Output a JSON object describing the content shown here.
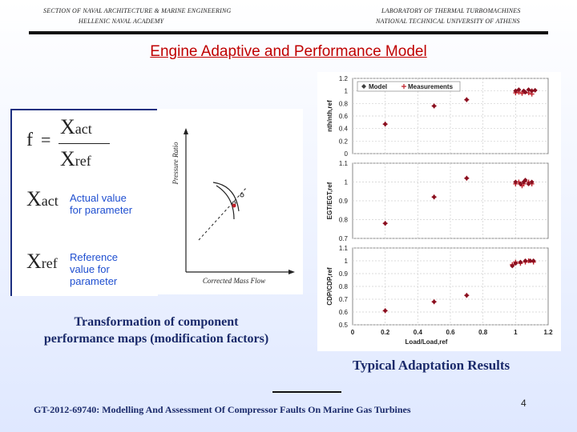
{
  "header": {
    "left_line1": "SECTION OF NAVAL ARCHITECTURE & MARINE ENGINEERING",
    "left_line2": "HELLENIC NAVAL ACADEMY",
    "right_line1": "LABORATORY OF THERMAL TURBOMACHINES",
    "right_line2": "NATIONAL TECHNICAL UNIVERSITY OF ATHENS"
  },
  "slide_title": "Engine Adaptive and Performance Model",
  "formula": {
    "f": "f",
    "equals": "=",
    "num_main": "X",
    "num_sub": "act",
    "den_main": "X",
    "den_sub": "ref",
    "xact_main": "X",
    "xact_sub": "act",
    "xact_desc_1": "Actual value",
    "xact_desc_2": "for parameter",
    "xref_main": "X",
    "xref_sub": "ref",
    "xref_desc_1": "Reference",
    "xref_desc_2": "value for",
    "xref_desc_3": "parameter"
  },
  "map": {
    "ylabel": "Pressure Ratio",
    "xlabel": "Corrected Mass Flow"
  },
  "left_caption_1": "Transformation of component",
  "left_caption_2": "performance maps (modification factors)",
  "right_caption": "Typical Adaptation Results",
  "footer": "GT-2012-69740: Modelling And Assessment Of Compressor Faults On Marine Gas Turbines",
  "page_number": "4",
  "colors": {
    "title": "#c00000",
    "accent_blue": "#1f4fd0",
    "caption": "#1a2a6a",
    "marker": "#c0202a",
    "model": "#404040"
  },
  "chart_data": [
    {
      "type": "scatter",
      "ylabel": "nth/nth,ref",
      "xlabel": "",
      "xlim": [
        0,
        1.2
      ],
      "ylim": [
        0,
        1.2
      ],
      "yticks": [
        "1.2",
        "1",
        "0.8",
        "0.6",
        "0.4",
        "0.2",
        "0"
      ],
      "legend": [
        "Model",
        "Measurements"
      ],
      "legend_position": "top-left",
      "grid": true,
      "model": [
        [
          0.2,
          0.47
        ],
        [
          0.5,
          0.76
        ],
        [
          0.7,
          0.86
        ],
        [
          1.0,
          1.0
        ],
        [
          1.05,
          1.0
        ],
        [
          1.1,
          1.0
        ],
        [
          1.02,
          1.02
        ],
        [
          1.08,
          1.02
        ],
        [
          1.12,
          1.01
        ],
        [
          1.06,
          0.98
        ]
      ],
      "measurements": [
        [
          0.2,
          0.47
        ],
        [
          0.5,
          0.76
        ],
        [
          0.7,
          0.86
        ],
        [
          1.0,
          0.97
        ],
        [
          1.05,
          0.99
        ],
        [
          1.08,
          0.97
        ],
        [
          1.1,
          1.0
        ],
        [
          1.02,
          0.98
        ],
        [
          1.04,
          0.96
        ],
        [
          1.1,
          0.95
        ]
      ]
    },
    {
      "type": "scatter",
      "ylabel": "EGT/EGT,ref",
      "xlabel": "",
      "xlim": [
        0,
        1.2
      ],
      "ylim": [
        0.7,
        1.1
      ],
      "yticks": [
        "1.1",
        "1",
        "0.9",
        "0.8",
        "0.7"
      ],
      "grid": true,
      "model": [
        [
          0.2,
          0.78
        ],
        [
          0.5,
          0.92
        ],
        [
          0.7,
          1.02
        ],
        [
          1.0,
          1.0
        ],
        [
          1.03,
          0.99
        ],
        [
          1.05,
          1.0
        ],
        [
          1.08,
          0.99
        ],
        [
          1.1,
          1.0
        ],
        [
          1.06,
          1.01
        ]
      ],
      "measurements": [
        [
          0.2,
          0.78
        ],
        [
          0.5,
          0.92
        ],
        [
          0.7,
          1.02
        ],
        [
          1.0,
          0.99
        ],
        [
          1.02,
          1.0
        ],
        [
          1.05,
          0.99
        ],
        [
          1.08,
          1.0
        ],
        [
          1.1,
          0.99
        ],
        [
          1.04,
          0.98
        ]
      ]
    },
    {
      "type": "scatter",
      "ylabel": "CDP/CDP,ref",
      "xlabel": "Load/Load,ref",
      "xlim": [
        0,
        1.2
      ],
      "ylim": [
        0.5,
        1.1
      ],
      "yticks": [
        "1.1",
        "1",
        "0.9",
        "0.8",
        "0.7",
        "0.6",
        "0.5"
      ],
      "xticks": [
        "0",
        "0.2",
        "0.4",
        "0.6",
        "0.8",
        "1",
        "1.2"
      ],
      "grid": true,
      "model": [
        [
          0.2,
          0.61
        ],
        [
          0.5,
          0.68
        ],
        [
          0.7,
          0.73
        ],
        [
          0.98,
          0.96
        ],
        [
          1.0,
          0.98
        ],
        [
          1.03,
          0.99
        ],
        [
          1.06,
          1.0
        ],
        [
          1.09,
          1.0
        ],
        [
          1.11,
          1.0
        ]
      ],
      "measurements": [
        [
          0.2,
          0.61
        ],
        [
          0.5,
          0.68
        ],
        [
          0.7,
          0.73
        ],
        [
          0.98,
          0.97
        ],
        [
          1.0,
          0.99
        ],
        [
          1.03,
          0.98
        ],
        [
          1.06,
          0.99
        ],
        [
          1.08,
          1.0
        ],
        [
          1.11,
          0.99
        ]
      ]
    }
  ]
}
